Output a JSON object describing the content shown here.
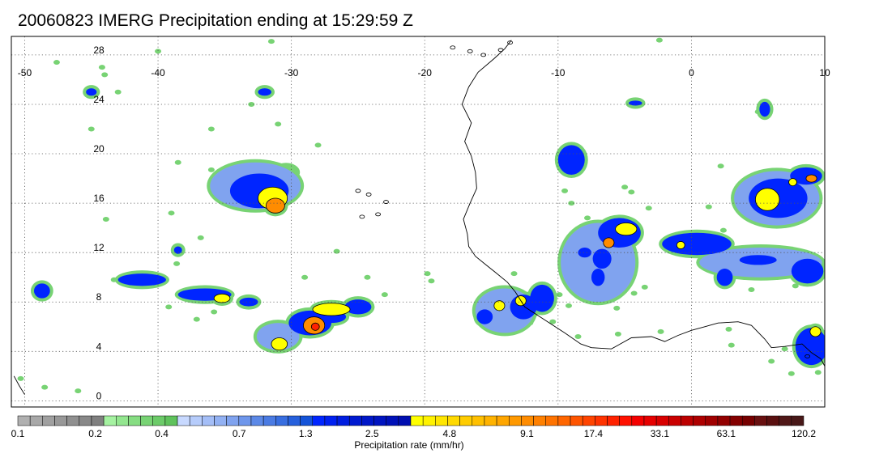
{
  "title": "20060823 IMERG Precipitation ending at 15:29:59 Z",
  "map": {
    "lon_range": [
      -51,
      10
    ],
    "lat_range": [
      -0.5,
      29.5
    ],
    "lon_ticks": [
      {
        "value": -50,
        "label": "-50"
      },
      {
        "value": -40,
        "label": "-40"
      },
      {
        "value": -30,
        "label": "-30"
      },
      {
        "value": -20,
        "label": "-20"
      },
      {
        "value": -10,
        "label": "-10"
      },
      {
        "value": 0,
        "label": "0"
      },
      {
        "value": 10,
        "label": "10"
      }
    ],
    "lat_ticks": [
      {
        "value": 0,
        "label": "0"
      },
      {
        "value": 4,
        "label": "4"
      },
      {
        "value": 8,
        "label": "8"
      },
      {
        "value": 12,
        "label": "12"
      },
      {
        "value": 16,
        "label": "16"
      },
      {
        "value": 20,
        "label": "20"
      },
      {
        "value": 24,
        "label": "24"
      },
      {
        "value": 28,
        "label": "28"
      }
    ],
    "grid": "dotted",
    "coastline": [
      [
        -13.5,
        29.2
      ],
      [
        -14,
        28.5
      ],
      [
        -14.8,
        27.7
      ],
      [
        -16,
        26.6
      ],
      [
        -16.7,
        25.4
      ],
      [
        -17.2,
        24
      ],
      [
        -16.5,
        22.5
      ],
      [
        -17,
        21
      ],
      [
        -16.5,
        19.8
      ],
      [
        -16.2,
        18.5
      ],
      [
        -16.1,
        17.2
      ],
      [
        -16.6,
        16
      ],
      [
        -17.1,
        14.7
      ],
      [
        -16.8,
        13.5
      ],
      [
        -16.7,
        12.5
      ],
      [
        -16.2,
        11.7
      ],
      [
        -15.4,
        11
      ],
      [
        -14.7,
        10.4
      ],
      [
        -13.8,
        9.6
      ],
      [
        -13.2,
        8.8
      ],
      [
        -12.5,
        7.6
      ],
      [
        -11.5,
        6.9
      ],
      [
        -10.5,
        6.2
      ],
      [
        -9.5,
        5.5
      ],
      [
        -8.3,
        4.6
      ],
      [
        -7.5,
        4.3
      ],
      [
        -6,
        4.2
      ],
      [
        -4.5,
        5.1
      ],
      [
        -3,
        5.2
      ],
      [
        -2,
        4.8
      ],
      [
        -1,
        5.3
      ],
      [
        0,
        5.7
      ],
      [
        1,
        6
      ],
      [
        2,
        6.3
      ],
      [
        3.5,
        6.4
      ],
      [
        4.5,
        6.1
      ],
      [
        5.5,
        5
      ],
      [
        6,
        4.3
      ],
      [
        7,
        4.4
      ],
      [
        8.3,
        4.6
      ],
      [
        9,
        3.9
      ],
      [
        9.7,
        3.4
      ],
      [
        10,
        2.8
      ]
    ],
    "coastline_west": [
      [
        -50.8,
        2
      ],
      [
        -50.4,
        1.2
      ],
      [
        -50,
        0.5
      ]
    ],
    "islands": [
      [
        -17.9,
        28.6
      ],
      [
        -16.6,
        28.3
      ],
      [
        -15.6,
        28
      ],
      [
        -14.3,
        28.4
      ],
      [
        -13.6,
        29
      ],
      [
        -25.0,
        17.0
      ],
      [
        -24.2,
        16.7
      ],
      [
        -23.5,
        15.1
      ],
      [
        -22.9,
        16.1
      ],
      [
        -24.7,
        14.9
      ],
      [
        8.7,
        3.6
      ]
    ]
  },
  "precip_cells": [
    {
      "lon": -32.7,
      "lat": 17.4,
      "rx": 3.4,
      "ry": 1.9,
      "level": "lightblue"
    },
    {
      "lon": -32.4,
      "lat": 17.0,
      "rx": 2.2,
      "ry": 1.4,
      "level": "blue"
    },
    {
      "lon": -31.4,
      "lat": 16.4,
      "rx": 1.1,
      "ry": 0.9,
      "level": "yellow"
    },
    {
      "lon": -31.2,
      "lat": 15.8,
      "rx": 0.7,
      "ry": 0.6,
      "level": "orange"
    },
    {
      "lon": -34.2,
      "lat": 17.2,
      "rx": 0.5,
      "ry": 0.5,
      "level": "green"
    },
    {
      "lon": -30.4,
      "lat": 18.5,
      "rx": 0.8,
      "ry": 0.5,
      "level": "green"
    },
    {
      "lon": -41.2,
      "lat": 9.8,
      "rx": 1.8,
      "ry": 0.5,
      "level": "blue"
    },
    {
      "lon": -36.5,
      "lat": 8.6,
      "rx": 2.0,
      "ry": 0.5,
      "level": "blue"
    },
    {
      "lon": -35.2,
      "lat": 8.3,
      "rx": 0.6,
      "ry": 0.35,
      "level": "yellow"
    },
    {
      "lon": -33.2,
      "lat": 8.0,
      "rx": 0.7,
      "ry": 0.35,
      "level": "blue"
    },
    {
      "lon": -48.7,
      "lat": 8.9,
      "rx": 0.6,
      "ry": 0.6,
      "level": "blue"
    },
    {
      "lon": -31.0,
      "lat": 5.2,
      "rx": 1.6,
      "ry": 1.1,
      "level": "lightblue"
    },
    {
      "lon": -30.9,
      "lat": 4.6,
      "rx": 0.6,
      "ry": 0.5,
      "level": "yellow"
    },
    {
      "lon": -28.6,
      "lat": 6.3,
      "rx": 1.6,
      "ry": 1.0,
      "level": "blue"
    },
    {
      "lon": -28.3,
      "lat": 6.1,
      "rx": 0.8,
      "ry": 0.7,
      "level": "orange"
    },
    {
      "lon": -28.2,
      "lat": 6.0,
      "rx": 0.3,
      "ry": 0.3,
      "level": "red"
    },
    {
      "lon": -27.0,
      "lat": 6.8,
      "rx": 1.1,
      "ry": 0.5,
      "level": "blue"
    },
    {
      "lon": -25.0,
      "lat": 7.6,
      "rx": 1.0,
      "ry": 0.6,
      "level": "blue"
    },
    {
      "lon": -27.0,
      "lat": 7.4,
      "rx": 1.4,
      "ry": 0.5,
      "level": "yellow"
    },
    {
      "lon": -14.0,
      "lat": 7.3,
      "rx": 2.2,
      "ry": 1.8,
      "level": "lightblue"
    },
    {
      "lon": -12.6,
      "lat": 7.6,
      "rx": 1.0,
      "ry": 1.0,
      "level": "blue"
    },
    {
      "lon": -14.4,
      "lat": 7.7,
      "rx": 0.4,
      "ry": 0.4,
      "level": "yellow"
    },
    {
      "lon": -12.8,
      "lat": 8.1,
      "rx": 0.4,
      "ry": 0.4,
      "level": "yellow"
    },
    {
      "lon": -11.2,
      "lat": 8.3,
      "rx": 0.9,
      "ry": 1.1,
      "level": "blue"
    },
    {
      "lon": -15.5,
      "lat": 6.8,
      "rx": 0.6,
      "ry": 0.6,
      "level": "blue"
    },
    {
      "lon": -7.0,
      "lat": 11.2,
      "rx": 2.8,
      "ry": 3.2,
      "level": "lightblue"
    },
    {
      "lon": -5.4,
      "lat": 13.6,
      "rx": 1.6,
      "ry": 1.2,
      "level": "blue"
    },
    {
      "lon": -4.9,
      "lat": 13.9,
      "rx": 0.8,
      "ry": 0.5,
      "level": "yellow"
    },
    {
      "lon": -6.2,
      "lat": 12.8,
      "rx": 0.4,
      "ry": 0.4,
      "level": "orange"
    },
    {
      "lon": -6.7,
      "lat": 11.5,
      "rx": 0.7,
      "ry": 0.8,
      "level": "blue"
    },
    {
      "lon": -7.0,
      "lat": 10.0,
      "rx": 0.5,
      "ry": 0.7,
      "level": "blue"
    },
    {
      "lon": -8.0,
      "lat": 12.0,
      "rx": 0.5,
      "ry": 0.4,
      "level": "blue"
    },
    {
      "lon": -9.0,
      "lat": 19.5,
      "rx": 1.0,
      "ry": 1.2,
      "level": "blue"
    },
    {
      "lon": 0.4,
      "lat": 12.7,
      "rx": 2.6,
      "ry": 0.9,
      "level": "blue"
    },
    {
      "lon": -0.8,
      "lat": 12.6,
      "rx": 0.3,
      "ry": 0.3,
      "level": "yellow"
    },
    {
      "lon": 5.2,
      "lat": 11.2,
      "rx": 4.6,
      "ry": 1.2,
      "level": "lightblue"
    },
    {
      "lon": 5.0,
      "lat": 11.4,
      "rx": 1.4,
      "ry": 0.4,
      "level": "blue"
    },
    {
      "lon": 8.7,
      "lat": 10.5,
      "rx": 1.2,
      "ry": 1.0,
      "level": "blue"
    },
    {
      "lon": 2.5,
      "lat": 10.0,
      "rx": 0.6,
      "ry": 0.7,
      "level": "blue"
    },
    {
      "lon": 6.4,
      "lat": 16.4,
      "rx": 3.2,
      "ry": 2.2,
      "level": "lightblue"
    },
    {
      "lon": 6.5,
      "lat": 16.4,
      "rx": 2.2,
      "ry": 1.6,
      "level": "blue"
    },
    {
      "lon": 5.7,
      "lat": 16.3,
      "rx": 0.9,
      "ry": 0.9,
      "level": "yellow"
    },
    {
      "lon": 8.6,
      "lat": 18.2,
      "rx": 1.2,
      "ry": 0.7,
      "level": "blue"
    },
    {
      "lon": 9.0,
      "lat": 18.0,
      "rx": 0.4,
      "ry": 0.3,
      "level": "orange"
    },
    {
      "lon": 7.6,
      "lat": 17.7,
      "rx": 0.3,
      "ry": 0.3,
      "level": "yellow"
    },
    {
      "lon": 5.5,
      "lat": 23.6,
      "rx": 0.4,
      "ry": 0.6,
      "level": "blue"
    },
    {
      "lon": 9.0,
      "lat": 4.4,
      "rx": 1.2,
      "ry": 1.5,
      "level": "blue"
    },
    {
      "lon": 9.3,
      "lat": 5.6,
      "rx": 0.4,
      "ry": 0.4,
      "level": "yellow"
    },
    {
      "lon": -4.2,
      "lat": 24.1,
      "rx": 0.5,
      "ry": 0.2,
      "level": "blue"
    },
    {
      "lon": -32.0,
      "lat": 25.0,
      "rx": 0.5,
      "ry": 0.3,
      "level": "blue"
    },
    {
      "lon": -45.0,
      "lat": 25.0,
      "rx": 0.4,
      "ry": 0.3,
      "level": "blue"
    },
    {
      "lon": -38.5,
      "lat": 12.2,
      "rx": 0.3,
      "ry": 0.3,
      "level": "blue"
    }
  ],
  "scatter_green": [
    [
      -31.5,
      29.1
    ],
    [
      -40.0,
      28.3
    ],
    [
      -47.6,
      27.4
    ],
    [
      -44.2,
      27.0
    ],
    [
      -44.0,
      26.4
    ],
    [
      -43.0,
      25.0
    ],
    [
      -33.0,
      24.0
    ],
    [
      -31.0,
      22.4
    ],
    [
      -36.0,
      22.0
    ],
    [
      -45.0,
      22.0
    ],
    [
      -28.0,
      20.7
    ],
    [
      -38.5,
      19.3
    ],
    [
      -36.0,
      18.7
    ],
    [
      -39.0,
      15.2
    ],
    [
      -43.9,
      14.7
    ],
    [
      -36.8,
      13.2
    ],
    [
      -38.6,
      11.1
    ],
    [
      -26.6,
      12.1
    ],
    [
      -29.0,
      10.0
    ],
    [
      -24.3,
      10.0
    ],
    [
      -19.8,
      10.3
    ],
    [
      -19.5,
      9.7
    ],
    [
      -43.3,
      9.8
    ],
    [
      -48.9,
      8.6
    ],
    [
      -39.2,
      7.6
    ],
    [
      -35.8,
      7.2
    ],
    [
      -37.1,
      6.6
    ],
    [
      -31.8,
      6.2
    ],
    [
      -23.0,
      8.6
    ],
    [
      -13.3,
      10.3
    ],
    [
      -9.9,
      8.6
    ],
    [
      -4.3,
      8.7
    ],
    [
      -5.6,
      7.5
    ],
    [
      -3.5,
      9.2
    ],
    [
      -5.5,
      5.4
    ],
    [
      -8.5,
      5.2
    ],
    [
      -13.8,
      6.0
    ],
    [
      -14.5,
      5.6
    ],
    [
      -10.4,
      6.4
    ],
    [
      -12.1,
      6.3
    ],
    [
      -9.2,
      7.7
    ],
    [
      -9.0,
      16.0
    ],
    [
      -9.5,
      17.0
    ],
    [
      -9.7,
      18.6
    ],
    [
      -5.0,
      17.3
    ],
    [
      -4.5,
      16.9
    ],
    [
      -3.2,
      15.6
    ],
    [
      -7.8,
      14.8
    ],
    [
      -8.3,
      13.2
    ],
    [
      2.2,
      19.0
    ],
    [
      1.3,
      15.7
    ],
    [
      2.4,
      13.8
    ],
    [
      4.5,
      9.0
    ],
    [
      7.8,
      9.3
    ],
    [
      2.8,
      5.8
    ],
    [
      -2.3,
      5.6
    ],
    [
      3.0,
      4.5
    ],
    [
      6.0,
      3.2
    ],
    [
      7.0,
      4.2
    ],
    [
      7.5,
      2.2
    ],
    [
      9.5,
      2.3
    ],
    [
      5.0,
      23.4
    ],
    [
      -2.4,
      29.2
    ],
    [
      -37.5,
      8.9
    ],
    [
      -50.3,
      1.8
    ],
    [
      -48.5,
      1.1
    ],
    [
      -46.0,
      0.8
    ]
  ],
  "colorbar": {
    "colors": [
      "#b0b0b0",
      "#a8a8a8",
      "#a0a0a0",
      "#989898",
      "#909090",
      "#888888",
      "#808080",
      "#a5f2a1",
      "#93e68f",
      "#86dd82",
      "#78d374",
      "#6ccb69",
      "#5fc25c",
      "#c8d9ff",
      "#b6ccfb",
      "#a4bef7",
      "#92b1f3",
      "#80a3ef",
      "#6e96eb",
      "#5c89e7",
      "#4a7be3",
      "#386ee0",
      "#2660dc",
      "#1453d8",
      "#0025ff",
      "#0020f0",
      "#001de0",
      "#001ad0",
      "#0017c8",
      "#0014c0",
      "#0011b8",
      "#000eb0",
      "#ffff00",
      "#fff200",
      "#ffe600",
      "#ffd900",
      "#ffcc00",
      "#ffc000",
      "#ffb300",
      "#ffa600",
      "#ff9900",
      "#ff8c00",
      "#ff8000",
      "#ff7300",
      "#ff6600",
      "#ff5500",
      "#ff4400",
      "#ff3300",
      "#ff2200",
      "#ff1100",
      "#f40000",
      "#e60000",
      "#d80000",
      "#ca0000",
      "#bc0000",
      "#ae0000",
      "#a00000",
      "#920000",
      "#840000",
      "#760000",
      "#681010",
      "#5a1010",
      "#501818",
      "#481818"
    ],
    "tick_labels": [
      {
        "index": 0,
        "label": "0.1"
      },
      {
        "index": 7,
        "label": "0.2"
      },
      {
        "index": 13,
        "label": "0.4"
      },
      {
        "index": 20,
        "label": "0.7"
      },
      {
        "index": 26,
        "label": "1.3"
      },
      {
        "index": 32,
        "label": "2.5"
      },
      {
        "index": 39,
        "label": "4.8"
      },
      {
        "index": 46,
        "label": "9.1"
      },
      {
        "index": 52,
        "label": "17.4"
      },
      {
        "index": 58,
        "label": "33.1"
      },
      {
        "index": 64,
        "label": "63.1"
      },
      {
        "index": 71,
        "label": "120.2"
      }
    ],
    "label": "Precipitation rate (mm/hr)"
  },
  "level_colors": {
    "green": "#78d374",
    "lightblue": "#80a3ef",
    "blue": "#0025ff",
    "yellow": "#ffff00",
    "orange": "#ff8c00",
    "red": "#ff2200"
  }
}
